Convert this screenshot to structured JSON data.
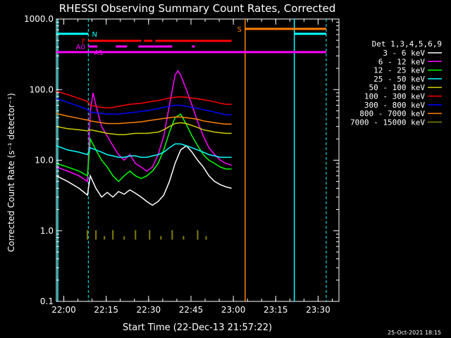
{
  "chart_data": {
    "type": "line",
    "title": "RHESSI Observing Summary Count Rates, Corrected",
    "xlabel": "Start Time (22-Dec-13 21:57:22)",
    "ylabel": "Corrected Count Rate (s⁻¹ detector⁻¹)",
    "y_scale": "log",
    "ylim": [
      0.1,
      1000
    ],
    "xlim_minutes": [
      0,
      100
    ],
    "x_tick_labels": [
      "22:00",
      "22:15",
      "22:30",
      "22:45",
      "23:00",
      "23:15",
      "23:30"
    ],
    "x_tick_minutes": [
      2.63,
      17.63,
      32.63,
      47.63,
      62.63,
      77.63,
      92.63
    ],
    "y_tick_labels": [
      "0.1",
      "1.0",
      "10.0",
      "100.0",
      "1000.0"
    ],
    "y_tick_values": [
      0.1,
      1,
      10,
      100,
      1000
    ],
    "grid": false,
    "legend": {
      "title": "Det 1,3,4,5,6,9",
      "placement": "right"
    },
    "series": [
      {
        "name": "3 - 6 keV",
        "color": "#000000",
        "points": [
          [
            0,
            6
          ],
          [
            4,
            5
          ],
          [
            8,
            4
          ],
          [
            11,
            3.2
          ],
          [
            12,
            6
          ],
          [
            14,
            4
          ],
          [
            16,
            3
          ],
          [
            18,
            3.5
          ],
          [
            20,
            3
          ],
          [
            22,
            3.6
          ],
          [
            24,
            3.3
          ],
          [
            26,
            3.8
          ],
          [
            28,
            3.4
          ],
          [
            30,
            3.0
          ],
          [
            32,
            2.6
          ],
          [
            34,
            2.3
          ],
          [
            36,
            2.6
          ],
          [
            38,
            3.2
          ],
          [
            40,
            5
          ],
          [
            42,
            9
          ],
          [
            44,
            14
          ],
          [
            46,
            16
          ],
          [
            48,
            13
          ],
          [
            50,
            10
          ],
          [
            52,
            8
          ],
          [
            54,
            6
          ],
          [
            56,
            5
          ],
          [
            58,
            4.5
          ],
          [
            60,
            4.2
          ],
          [
            62,
            4
          ]
        ]
      },
      {
        "name": "6 - 12 keV",
        "color": "#ff00ff",
        "points": [
          [
            0,
            8
          ],
          [
            4,
            7
          ],
          [
            8,
            6
          ],
          [
            11,
            5
          ],
          [
            12,
            50
          ],
          [
            13,
            90
          ],
          [
            14,
            60
          ],
          [
            16,
            30
          ],
          [
            18,
            22
          ],
          [
            20,
            16
          ],
          [
            22,
            12
          ],
          [
            24,
            10
          ],
          [
            26,
            12
          ],
          [
            28,
            9
          ],
          [
            30,
            8
          ],
          [
            32,
            7
          ],
          [
            34,
            8
          ],
          [
            36,
            12
          ],
          [
            38,
            22
          ],
          [
            40,
            60
          ],
          [
            42,
            160
          ],
          [
            43,
            185
          ],
          [
            44,
            160
          ],
          [
            46,
            100
          ],
          [
            48,
            60
          ],
          [
            50,
            35
          ],
          [
            52,
            22
          ],
          [
            54,
            15
          ],
          [
            56,
            12
          ],
          [
            58,
            10
          ],
          [
            60,
            9
          ],
          [
            62,
            8.5
          ]
        ]
      },
      {
        "name": "12 - 25 keV",
        "color": "#00ff00",
        "points": [
          [
            0,
            9
          ],
          [
            4,
            8
          ],
          [
            8,
            7
          ],
          [
            11,
            6
          ],
          [
            12,
            20
          ],
          [
            14,
            14
          ],
          [
            16,
            10
          ],
          [
            18,
            8
          ],
          [
            20,
            6
          ],
          [
            22,
            5
          ],
          [
            24,
            6
          ],
          [
            26,
            7
          ],
          [
            28,
            6
          ],
          [
            30,
            5.5
          ],
          [
            32,
            6
          ],
          [
            34,
            7
          ],
          [
            36,
            9
          ],
          [
            38,
            14
          ],
          [
            40,
            25
          ],
          [
            42,
            40
          ],
          [
            44,
            45
          ],
          [
            46,
            32
          ],
          [
            48,
            22
          ],
          [
            50,
            16
          ],
          [
            52,
            12
          ],
          [
            54,
            10
          ],
          [
            56,
            9
          ],
          [
            58,
            8
          ],
          [
            60,
            7.5
          ],
          [
            62,
            7.5
          ]
        ]
      },
      {
        "name": "25 - 50 keV",
        "color": "#00ffff",
        "points": [
          [
            0,
            16
          ],
          [
            4,
            14
          ],
          [
            8,
            13
          ],
          [
            11,
            12
          ],
          [
            12,
            15
          ],
          [
            14,
            14
          ],
          [
            16,
            13
          ],
          [
            18,
            12
          ],
          [
            20,
            11.5
          ],
          [
            22,
            11
          ],
          [
            24,
            11
          ],
          [
            26,
            11.5
          ],
          [
            28,
            11.5
          ],
          [
            30,
            11
          ],
          [
            32,
            11
          ],
          [
            34,
            11.5
          ],
          [
            36,
            12
          ],
          [
            38,
            13
          ],
          [
            40,
            15
          ],
          [
            42,
            17
          ],
          [
            44,
            17
          ],
          [
            46,
            16
          ],
          [
            48,
            15
          ],
          [
            50,
            14
          ],
          [
            52,
            13
          ],
          [
            54,
            12
          ],
          [
            56,
            11.5
          ],
          [
            58,
            11
          ],
          [
            60,
            11
          ],
          [
            62,
            11
          ]
        ]
      },
      {
        "name": "50 - 100 keV",
        "color": "#cccc00",
        "points": [
          [
            0,
            30
          ],
          [
            4,
            28
          ],
          [
            8,
            27
          ],
          [
            11,
            26
          ],
          [
            12,
            27
          ],
          [
            14,
            26
          ],
          [
            16,
            25
          ],
          [
            18,
            24
          ],
          [
            20,
            23.5
          ],
          [
            22,
            23
          ],
          [
            24,
            23
          ],
          [
            26,
            23.5
          ],
          [
            28,
            24
          ],
          [
            30,
            24
          ],
          [
            32,
            24
          ],
          [
            34,
            24.5
          ],
          [
            36,
            25
          ],
          [
            38,
            27
          ],
          [
            40,
            30
          ],
          [
            42,
            33
          ],
          [
            44,
            34
          ],
          [
            46,
            33
          ],
          [
            48,
            31
          ],
          [
            50,
            29
          ],
          [
            52,
            27
          ],
          [
            54,
            26
          ],
          [
            56,
            25
          ],
          [
            58,
            24.5
          ],
          [
            60,
            24
          ],
          [
            62,
            24
          ]
        ]
      },
      {
        "name": "100 - 300 keV",
        "color": "#ff0000",
        "points": [
          [
            0,
            95
          ],
          [
            4,
            85
          ],
          [
            8,
            75
          ],
          [
            11,
            68
          ],
          [
            12,
            60
          ],
          [
            14,
            58
          ],
          [
            16,
            56
          ],
          [
            18,
            55
          ],
          [
            20,
            56
          ],
          [
            22,
            58
          ],
          [
            24,
            60
          ],
          [
            26,
            62
          ],
          [
            28,
            63
          ],
          [
            30,
            64
          ],
          [
            32,
            66
          ],
          [
            34,
            68
          ],
          [
            36,
            70
          ],
          [
            38,
            73
          ],
          [
            40,
            76
          ],
          [
            42,
            78
          ],
          [
            44,
            79
          ],
          [
            46,
            78
          ],
          [
            48,
            76
          ],
          [
            50,
            74
          ],
          [
            52,
            72
          ],
          [
            54,
            70
          ],
          [
            56,
            67
          ],
          [
            58,
            64
          ],
          [
            60,
            62
          ],
          [
            62,
            62
          ]
        ]
      },
      {
        "name": "300 - 800 keV",
        "color": "#0000ff",
        "points": [
          [
            0,
            75
          ],
          [
            4,
            66
          ],
          [
            8,
            58
          ],
          [
            11,
            52
          ],
          [
            12,
            48
          ],
          [
            14,
            47
          ],
          [
            16,
            46
          ],
          [
            18,
            45
          ],
          [
            20,
            45
          ],
          [
            22,
            45
          ],
          [
            24,
            46
          ],
          [
            26,
            47
          ],
          [
            28,
            48
          ],
          [
            30,
            49
          ],
          [
            32,
            50
          ],
          [
            34,
            52
          ],
          [
            36,
            54
          ],
          [
            38,
            56
          ],
          [
            40,
            58
          ],
          [
            42,
            60
          ],
          [
            44,
            60
          ],
          [
            46,
            58
          ],
          [
            48,
            56
          ],
          [
            50,
            54
          ],
          [
            52,
            52
          ],
          [
            54,
            50
          ],
          [
            56,
            48
          ],
          [
            58,
            46
          ],
          [
            60,
            44
          ],
          [
            62,
            44
          ]
        ]
      },
      {
        "name": "800 - 7000 keV",
        "color": "#ff8000",
        "points": [
          [
            0,
            46
          ],
          [
            4,
            42
          ],
          [
            8,
            39
          ],
          [
            11,
            37
          ],
          [
            12,
            36
          ],
          [
            14,
            35
          ],
          [
            16,
            34
          ],
          [
            18,
            33
          ],
          [
            20,
            33
          ],
          [
            22,
            33
          ],
          [
            24,
            33.5
          ],
          [
            26,
            34
          ],
          [
            28,
            34.5
          ],
          [
            30,
            35
          ],
          [
            32,
            36
          ],
          [
            34,
            37
          ],
          [
            36,
            38
          ],
          [
            38,
            39
          ],
          [
            40,
            40
          ],
          [
            42,
            41
          ],
          [
            44,
            41
          ],
          [
            46,
            40
          ],
          [
            48,
            39
          ],
          [
            50,
            38
          ],
          [
            52,
            36
          ],
          [
            54,
            35
          ],
          [
            56,
            34
          ],
          [
            58,
            33
          ],
          [
            60,
            32.5
          ],
          [
            62,
            32.5
          ]
        ]
      },
      {
        "name": "7000 - 15000 keV",
        "color": "#808000",
        "points": [
          [
            11,
            0.85
          ],
          [
            14,
            0.85
          ],
          [
            17,
            0.7
          ],
          [
            20,
            0.85
          ],
          [
            24,
            0.7
          ],
          [
            28,
            0.85
          ],
          [
            33,
            0.85
          ],
          [
            37,
            0.7
          ],
          [
            41,
            0.85
          ],
          [
            45,
            0.7
          ],
          [
            50,
            0.85
          ],
          [
            53,
            0.7
          ]
        ]
      }
    ],
    "annotations": [
      {
        "label": "N",
        "color": "#00ffff"
      },
      {
        "label": "F",
        "color": "#ff0000"
      },
      {
        "label": "A0",
        "color": "#ff00ff"
      },
      {
        "label": "A1",
        "color": "#ff00ff"
      },
      {
        "label": "S",
        "color": "#ff8000"
      }
    ],
    "footer_timestamp": "25-Oct-2021 18:15"
  }
}
